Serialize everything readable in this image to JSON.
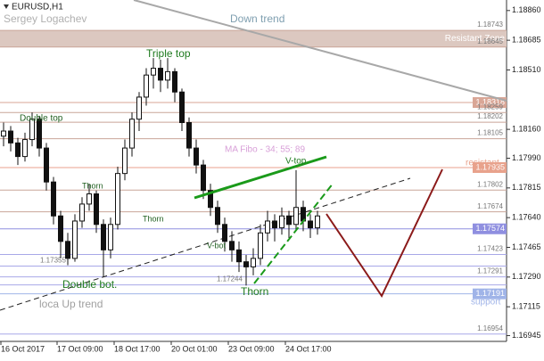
{
  "chart_data": {
    "type": "candlestick",
    "title": "EURUSD,H1",
    "author": "Sergey Logachev",
    "ylim": [
      1.16911,
      1.18922
    ],
    "yticks": [
      {
        "value": 1.1886,
        "label": "1.18860"
      },
      {
        "value": 1.18685,
        "label": "1.18685"
      },
      {
        "value": 1.1851,
        "label": "1.18510"
      },
      {
        "value": 1.1816,
        "label": "1.18160"
      },
      {
        "value": 1.1799,
        "label": "1.17990"
      },
      {
        "value": 1.17815,
        "label": "1.17815"
      },
      {
        "value": 1.1764,
        "label": "1.17640"
      },
      {
        "value": 1.17465,
        "label": "1.17465"
      },
      {
        "value": 1.1729,
        "label": "1.17290"
      },
      {
        "value": 1.17115,
        "label": "1.17115"
      },
      {
        "value": 1.16945,
        "label": "1.16945"
      }
    ],
    "x_labels": [
      "16 Oct 2017",
      "17 Oct 09:00",
      "18 Oct 17:00",
      "20 Oct 01:00",
      "23 Oct 09:00",
      "24 Oct 17:00"
    ],
    "candles": [
      [
        1.1812,
        1.182,
        1.1806,
        1.1815
      ],
      [
        1.1815,
        1.1818,
        1.1803,
        1.1808
      ],
      [
        1.1808,
        1.1811,
        1.1795,
        1.18
      ],
      [
        1.18,
        1.1814,
        1.1797,
        1.181
      ],
      [
        1.181,
        1.1826,
        1.1806,
        1.1822
      ],
      [
        1.1822,
        1.1824,
        1.18,
        1.1805
      ],
      [
        1.1805,
        1.1808,
        1.178,
        1.1785
      ],
      [
        1.1785,
        1.1788,
        1.176,
        1.1765
      ],
      [
        1.1765,
        1.1768,
        1.174,
        1.175
      ],
      [
        1.175,
        1.1755,
        1.1736,
        1.174
      ],
      [
        1.174,
        1.1766,
        1.1738,
        1.1762
      ],
      [
        1.1762,
        1.1776,
        1.1758,
        1.1772
      ],
      [
        1.1772,
        1.1784,
        1.1768,
        1.1778
      ],
      [
        1.1778,
        1.178,
        1.1755,
        1.176
      ],
      [
        1.176,
        1.1763,
        1.1729,
        1.1745
      ],
      [
        1.1745,
        1.1764,
        1.174,
        1.176
      ],
      [
        1.176,
        1.1794,
        1.1757,
        1.179
      ],
      [
        1.179,
        1.181,
        1.1786,
        1.1805
      ],
      [
        1.1805,
        1.1826,
        1.18,
        1.1822
      ],
      [
        1.1822,
        1.1838,
        1.1815,
        1.1835
      ],
      [
        1.1835,
        1.1852,
        1.183,
        1.1848
      ],
      [
        1.1848,
        1.1858,
        1.184,
        1.1852
      ],
      [
        1.1852,
        1.1857,
        1.1838,
        1.1845
      ],
      [
        1.1845,
        1.1858,
        1.184,
        1.185
      ],
      [
        1.185,
        1.1852,
        1.1832,
        1.1838
      ],
      [
        1.1838,
        1.184,
        1.1815,
        1.182
      ],
      [
        1.182,
        1.1823,
        1.18,
        1.1805
      ],
      [
        1.1805,
        1.181,
        1.179,
        1.1795
      ],
      [
        1.1795,
        1.1798,
        1.1775,
        1.178
      ],
      [
        1.178,
        1.1784,
        1.1765,
        1.177
      ],
      [
        1.177,
        1.1774,
        1.1755,
        1.176
      ],
      [
        1.176,
        1.1764,
        1.1744,
        1.175
      ],
      [
        1.175,
        1.1756,
        1.1738,
        1.1745
      ],
      [
        1.1745,
        1.175,
        1.1732,
        1.1738
      ],
      [
        1.1738,
        1.1742,
        1.1724,
        1.1735
      ],
      [
        1.1735,
        1.1746,
        1.173,
        1.174
      ],
      [
        1.174,
        1.176,
        1.1736,
        1.1755
      ],
      [
        1.1755,
        1.1768,
        1.175,
        1.1762
      ],
      [
        1.1762,
        1.1766,
        1.175,
        1.1758
      ],
      [
        1.1758,
        1.177,
        1.1754,
        1.1765
      ],
      [
        1.1765,
        1.1768,
        1.1752,
        1.176
      ],
      [
        1.176,
        1.1792,
        1.1756,
        1.177
      ],
      [
        1.177,
        1.1774,
        1.1756,
        1.1762
      ],
      [
        1.1762,
        1.1766,
        1.1752,
        1.1758
      ],
      [
        1.1758,
        1.1768,
        1.1754,
        1.1765
      ]
    ],
    "levels": [
      {
        "value": 1.18743,
        "label": "1.18743",
        "color": "#c9a598",
        "highlight": false
      },
      {
        "value": 1.18645,
        "label": "1.18645",
        "color": "#c9a598",
        "highlight": false
      },
      {
        "value": 1.18318,
        "label": "1.18318",
        "color": "#d9a696",
        "highlight": true
      },
      {
        "value": 1.18259,
        "label": "1.18259",
        "color": "#c9a598",
        "highlight": false
      },
      {
        "value": 1.18202,
        "label": "1.18202",
        "color": "#c9a598",
        "highlight": false
      },
      {
        "value": 1.18105,
        "label": "1.18105",
        "color": "#c9a598",
        "highlight": false
      },
      {
        "value": 1.17935,
        "label": "1.17935",
        "color": "#e8a28c",
        "highlight": true
      },
      {
        "value": 1.17802,
        "label": "1.17802",
        "color": "#c9a598",
        "highlight": false
      },
      {
        "value": 1.17674,
        "label": "1.17674",
        "color": "#c9a598",
        "highlight": false
      },
      {
        "value": 1.17574,
        "label": "1.17574",
        "color": "#8f8fe0",
        "highlight": true
      },
      {
        "value": 1.17423,
        "label": "1.17423",
        "color": "#a8a8e8",
        "highlight": false
      },
      {
        "value": 1.17355,
        "label": "1.17355",
        "color": "#a8a8e8",
        "highlight": false
      },
      {
        "value": 1.17291,
        "label": "1.17291",
        "color": "#a8a8e8",
        "highlight": false
      },
      {
        "value": 1.17244,
        "label": "1.17244",
        "color": "#a8a8e8",
        "highlight": false
      },
      {
        "value": 1.17191,
        "label": "1.17191",
        "color": "#a0b4e8",
        "highlight": true
      },
      {
        "value": 1.16954,
        "label": "1.16954",
        "color": "#a8a8e8",
        "highlight": false
      }
    ],
    "zone_label": "Resistant Zone",
    "annotations": [
      {
        "text": "Down trend",
        "color": "#7f9fb0"
      },
      {
        "text": "Triple top",
        "color": "#1f7a1f"
      },
      {
        "text": "Double top",
        "color": "#1f5f1f"
      },
      {
        "text": "MA Fibo - 34; 55; 89",
        "color": "#d8a0d8"
      },
      {
        "text": "resistant",
        "color": "#e8a28c"
      },
      {
        "text": "V-top",
        "color": "#1f7a1f"
      },
      {
        "text": "Thorn",
        "color": "#1f5f1f"
      },
      {
        "text": "Thorn",
        "color": "#1f5f1f"
      },
      {
        "text": "Thorn",
        "color": "#1f7a1f"
      },
      {
        "text": "V-bot",
        "color": "#1f5f1f"
      },
      {
        "text": "Double bot.",
        "color": "#1f7a1f"
      },
      {
        "text": "loca Up trend",
        "color": "#a0a0a0"
      },
      {
        "text": "support",
        "color": "#a0b4e8"
      }
    ]
  }
}
